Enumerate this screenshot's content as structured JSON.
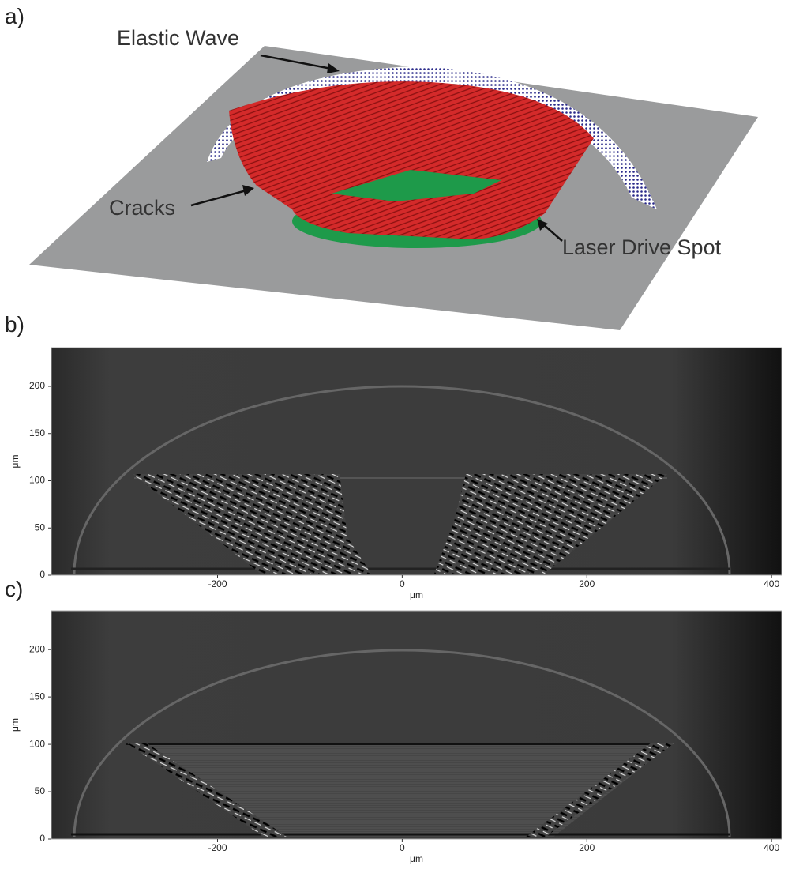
{
  "panels": [
    {
      "label": "a)",
      "annotations": [
        "Elastic Wave",
        "Cracks",
        "Laser Drive Spot"
      ]
    },
    {
      "label": "b)",
      "xlabel": "μm",
      "ylabel": "μm",
      "xlim": [
        -380,
        411
      ],
      "ylim": [
        0,
        241
      ],
      "xticks": [
        -200,
        0,
        200,
        400
      ],
      "yticks": [
        0,
        50,
        100,
        150,
        200
      ]
    },
    {
      "label": "c)",
      "xlabel": "μm",
      "ylabel": "μm",
      "xlim": [
        -380,
        411
      ],
      "ylim": [
        0,
        241
      ],
      "xticks": [
        -200,
        0,
        200,
        400
      ],
      "yticks": [
        0,
        50,
        100,
        150,
        200
      ]
    }
  ]
}
